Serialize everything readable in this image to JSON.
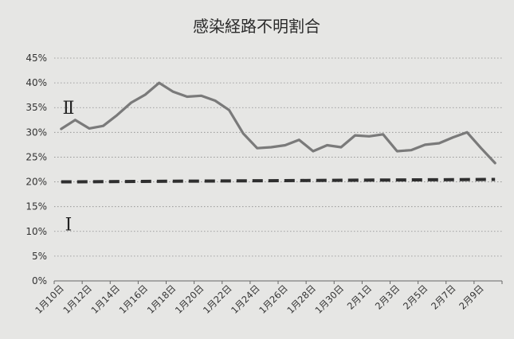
{
  "chart_data": {
    "type": "line",
    "title": "感染経路不明割合",
    "xlabel": "",
    "ylabel": "",
    "ylim": [
      0,
      0.45
    ],
    "yticks": [
      {
        "value": 0.0,
        "label": "0%"
      },
      {
        "value": 0.05,
        "label": "5%"
      },
      {
        "value": 0.1,
        "label": "10%"
      },
      {
        "value": 0.15,
        "label": "15%"
      },
      {
        "value": 0.2,
        "label": "20%"
      },
      {
        "value": 0.25,
        "label": "25%"
      },
      {
        "value": 0.3,
        "label": "30%"
      },
      {
        "value": 0.35,
        "label": "35%"
      },
      {
        "value": 0.4,
        "label": "40%"
      },
      {
        "value": 0.45,
        "label": "45%"
      }
    ],
    "grid": true,
    "x_range": [
      "1月10日",
      "2月10日"
    ],
    "xtick_labels": [
      "1月10日",
      "1月12日",
      "1月14日",
      "1月16日",
      "1月18日",
      "1月20日",
      "1月22日",
      "1月24日",
      "1月26日",
      "1月28日",
      "1月30日",
      "2月1日",
      "2月3日",
      "2月5日",
      "2月7日",
      "2月9日"
    ],
    "series": [
      {
        "values": [
          0.307,
          0.325,
          0.308,
          0.313,
          0.335,
          0.36,
          0.376,
          0.4,
          0.382,
          0.372,
          0.374,
          0.364,
          0.345,
          0.298,
          0.268,
          0.27,
          0.274,
          0.285,
          0.262,
          0.274,
          0.27,
          0.294,
          0.292,
          0.296,
          0.262,
          0.264,
          0.275,
          0.278,
          0.29,
          0.3,
          0.268,
          0.238
        ]
      }
    ],
    "threshold": {
      "y_start": 0.2,
      "y_end": 0.205,
      "style": "dashed"
    },
    "zone_labels": [
      {
        "text": "Ⅱ",
        "y": 0.35
      },
      {
        "text": "Ⅰ",
        "y": 0.115
      }
    ]
  }
}
